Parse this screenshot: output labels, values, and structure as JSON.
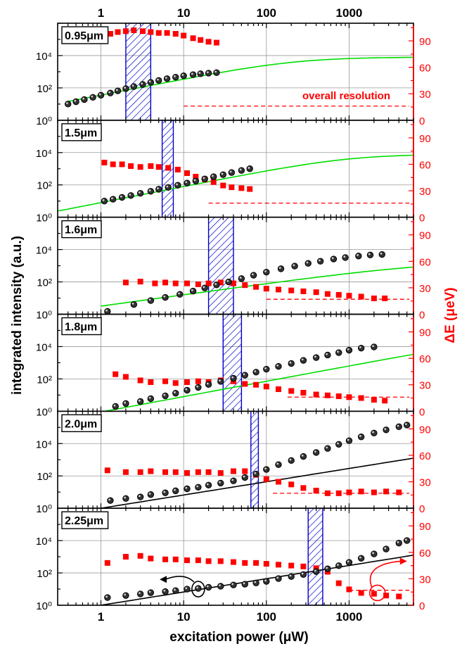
{
  "figure": {
    "ylabel_left": "integrated intensity (a.u.)",
    "ylabel_right": "ΔE (μeV)",
    "xlabel_bottom": "excitation power (μW)",
    "colors": {
      "intensity": "#000000",
      "linewidth": "#ff0000",
      "fit": "#00dd00",
      "band": "#0000cc",
      "grid": "#999999"
    }
  },
  "chart_data": {
    "type": "scatter",
    "x_axis": {
      "scale": "log",
      "range": [
        0.3,
        6000
      ],
      "ticks": [
        1,
        10,
        100,
        1000
      ],
      "tick_labels": [
        "1",
        "10",
        "100",
        "1000"
      ],
      "unit": "μW"
    },
    "left_axis": {
      "scale": "log",
      "range": [
        1,
        1000000
      ],
      "tick_labels": [
        "10⁰",
        "10²",
        "10⁴"
      ],
      "label": "integrated intensity (a.u.)"
    },
    "right_axis": {
      "scale": "linear",
      "range": [
        0,
        110
      ],
      "ticks": [
        0,
        30,
        60,
        90
      ],
      "label": "ΔE (μeV)"
    },
    "resolution_annotation": "overall resolution",
    "grid": true,
    "panels": [
      {
        "label": "0.95μm",
        "band_range": [
          2,
          4
        ],
        "resolution_level": 16,
        "resolution_from": 10,
        "show_resolution_text": true,
        "intensity": {
          "x": [
            0.4,
            0.5,
            0.63,
            0.8,
            1.0,
            1.3,
            1.6,
            2.0,
            2.5,
            3.2,
            4.0,
            5.0,
            6.3,
            8.0,
            10,
            13,
            16,
            20,
            25
          ],
          "y": [
            10,
            14,
            19,
            26,
            35,
            48,
            66,
            90,
            122,
            165,
            220,
            290,
            370,
            460,
            560,
            660,
            750,
            820,
            880
          ]
        },
        "fit": {
          "kind": "saturation",
          "a": 36,
          "s": 8000,
          "n": 1,
          "x_range": [
            0.4,
            6000
          ]
        },
        "linewidth": {
          "x": [
            0.4,
            0.5,
            0.63,
            0.8,
            1.0,
            1.3,
            1.6,
            2.0,
            2.5,
            3.2,
            4.0,
            5.0,
            6.3,
            8.0,
            10,
            13,
            16,
            20,
            25
          ],
          "y": [
            103,
            103,
            98,
            100,
            98,
            98,
            100,
            101,
            102,
            101,
            100,
            99,
            99,
            98,
            96,
            93,
            91,
            89,
            88
          ]
        }
      },
      {
        "label": "1.5μm",
        "band_range": [
          5.5,
          7.5
        ],
        "resolution_level": 16,
        "resolution_from": 20,
        "show_resolution_text": false,
        "intensity": {
          "x": [
            1.1,
            1.4,
            1.8,
            2.3,
            3.0,
            4.0,
            5.0,
            6.5,
            8.5,
            11,
            14,
            18,
            23,
            30,
            38,
            50,
            63
          ],
          "y": [
            10,
            13,
            17,
            22,
            30,
            40,
            54,
            70,
            95,
            130,
            175,
            235,
            320,
            430,
            580,
            780,
            1000
          ]
        },
        "fit": {
          "kind": "saturation",
          "a": 8,
          "s": 8000,
          "n": 1,
          "x_range": [
            0.3,
            6000
          ]
        },
        "linewidth": {
          "x": [
            1.1,
            1.4,
            1.8,
            2.3,
            3.0,
            4.0,
            5.0,
            6.5,
            8.5,
            11,
            14,
            18,
            23,
            30,
            38,
            50,
            63
          ],
          "y": [
            62,
            60,
            60,
            58,
            57,
            58,
            57,
            56,
            54,
            50,
            46,
            43,
            40,
            36,
            34,
            33,
            32
          ]
        }
      },
      {
        "label": "1.6μm",
        "band_range": [
          20,
          40
        ],
        "resolution_level": 17,
        "resolution_from": 100,
        "show_resolution_text": false,
        "intensity": {
          "x": [
            1.2,
            2.5,
            4,
            6,
            9,
            13,
            18,
            25,
            35,
            50,
            70,
            100,
            150,
            220,
            320,
            450,
            650,
            900,
            1300,
            1800,
            2500
          ],
          "y": [
            1.5,
            4,
            7,
            11,
            17,
            27,
            42,
            65,
            100,
            160,
            260,
            400,
            650,
            950,
            1400,
            1900,
            2600,
            3200,
            4000,
            4600,
            5000
          ]
        },
        "fit": {
          "kind": "saturation",
          "a": 3.2,
          "s": 2000,
          "n": 0.7,
          "x_range": [
            1,
            6000
          ]
        },
        "linewidth": {
          "x": [
            2,
            3,
            4.5,
            6,
            8,
            11,
            15,
            20,
            28,
            40,
            55,
            75,
            100,
            140,
            200,
            280,
            400,
            550,
            750,
            1000,
            1400,
            2000,
            2700
          ],
          "y": [
            36,
            37,
            35,
            36,
            35,
            35,
            34,
            35,
            36,
            35,
            33,
            31,
            29,
            28,
            27,
            26,
            25,
            23,
            22,
            21,
            20,
            18,
            18
          ]
        }
      },
      {
        "label": "1.8μm",
        "band_range": [
          30,
          50
        ],
        "resolution_level": 16,
        "resolution_from": 180,
        "show_resolution_text": false,
        "intensity": {
          "x": [
            1.5,
            2,
            3,
            4,
            6,
            8,
            11,
            15,
            20,
            28,
            40,
            55,
            75,
            100,
            140,
            200,
            280,
            400,
            550,
            750,
            1000,
            1400,
            2000
          ],
          "y": [
            2,
            3,
            4,
            6,
            9,
            13,
            20,
            30,
            45,
            70,
            110,
            170,
            260,
            400,
            600,
            900,
            1400,
            2100,
            3000,
            4200,
            6000,
            8000,
            9500
          ]
        },
        "fit": {
          "kind": "saturation",
          "a": 0.9,
          "s": 60000,
          "n": 0.95,
          "x_range": [
            0.8,
            6000
          ]
        },
        "linewidth": {
          "x": [
            1.5,
            2,
            3,
            4,
            6,
            8,
            11,
            15,
            20,
            28,
            40,
            55,
            75,
            100,
            140,
            200,
            280,
            400,
            550,
            750,
            1000,
            1400,
            2000,
            2700
          ],
          "y": [
            42,
            39,
            35,
            33,
            34,
            32,
            33,
            34,
            33,
            35,
            34,
            31,
            30,
            28,
            25,
            23,
            21,
            19,
            18,
            17,
            16,
            15,
            13,
            12
          ]
        }
      },
      {
        "label": "2.0μm",
        "band_range": [
          65,
          80
        ],
        "resolution_level": 17,
        "resolution_from": 120,
        "show_resolution_text": false,
        "intensity": {
          "x": [
            1.3,
            2,
            3,
            4,
            6,
            8,
            11,
            15,
            20,
            28,
            40,
            55,
            75,
            100,
            140,
            200,
            280,
            400,
            550,
            750,
            1000,
            1400,
            2000,
            2800,
            4000,
            5000
          ],
          "y": [
            3,
            4,
            5,
            7,
            9,
            12,
            16,
            20,
            27,
            36,
            50,
            80,
            130,
            250,
            500,
            900,
            1600,
            2800,
            5000,
            9000,
            15000,
            26000,
            45000,
            70000,
            110000,
            140000
          ]
        },
        "fit": {
          "kind": "power",
          "a": 1,
          "s": 0,
          "n": 0.82,
          "x_range": [
            1,
            6000
          ]
        },
        "linewidth": {
          "x": [
            1.2,
            2,
            3,
            4,
            6,
            8,
            11,
            15,
            20,
            28,
            40,
            55,
            75,
            100,
            140,
            200,
            280,
            400,
            550,
            750,
            1000,
            1400,
            2000,
            2800,
            4000
          ],
          "y": [
            43,
            41,
            41,
            42,
            41,
            41,
            40,
            41,
            41,
            40,
            42,
            42,
            38,
            33,
            30,
            27,
            23,
            20,
            17,
            17,
            18,
            19,
            18,
            19,
            18
          ]
        }
      },
      {
        "label": "2.25μm",
        "band_range": [
          320,
          480
        ],
        "resolution_level": 17,
        "resolution_from": 1000,
        "show_resolution_text": false,
        "intensity": {
          "x": [
            1.2,
            2,
            3,
            4,
            6,
            8,
            11,
            15,
            20,
            28,
            40,
            55,
            75,
            100,
            140,
            200,
            280,
            400,
            550,
            750,
            1000,
            1400,
            2000,
            2800,
            4000,
            5000
          ],
          "y": [
            3,
            4,
            5,
            6,
            7,
            8,
            10,
            11,
            13,
            15,
            18,
            20,
            24,
            30,
            45,
            60,
            80,
            120,
            180,
            280,
            450,
            800,
            1500,
            3000,
            7000,
            10000
          ]
        },
        "fit": {
          "kind": "power",
          "a": 1,
          "s": 0,
          "n": 0.82,
          "x_range": [
            1,
            6000
          ]
        },
        "linewidth": {
          "x": [
            1.2,
            2,
            3,
            4,
            6,
            8,
            11,
            15,
            20,
            28,
            40,
            55,
            75,
            100,
            140,
            200,
            280,
            400,
            550,
            750,
            1000,
            1400,
            2000,
            2800,
            4000
          ],
          "y": [
            48,
            55,
            56,
            53,
            52,
            52,
            51,
            51,
            50,
            50,
            49,
            48,
            48,
            47,
            46,
            45,
            44,
            42,
            38,
            25,
            18,
            14,
            13,
            11,
            10
          ]
        }
      }
    ]
  }
}
